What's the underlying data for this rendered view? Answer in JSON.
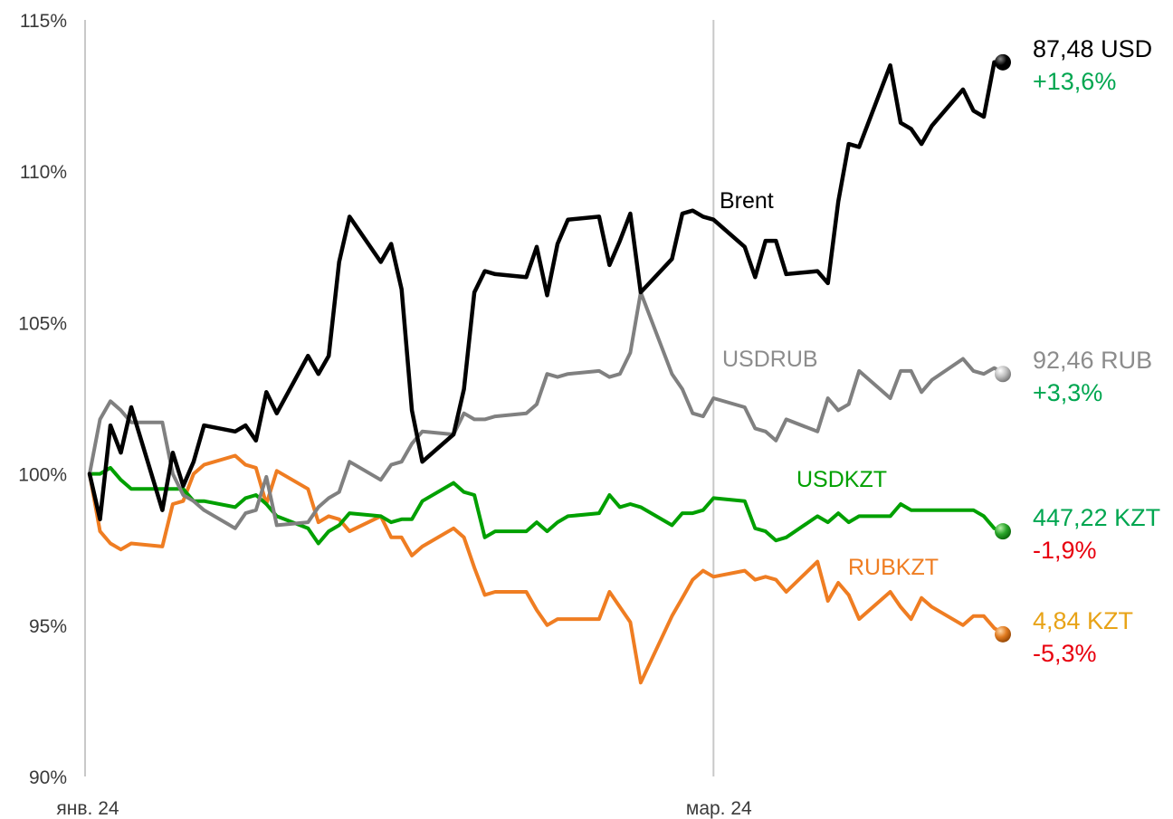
{
  "chart_data": {
    "type": "line",
    "title": "",
    "xlabel": "",
    "ylabel": "",
    "ylim": [
      90,
      115
    ],
    "y_ticks": [
      {
        "value": 90,
        "label": "90%"
      },
      {
        "value": 95,
        "label": "95%"
      },
      {
        "value": 100,
        "label": "100%"
      },
      {
        "value": 105,
        "label": "105%"
      },
      {
        "value": 110,
        "label": "110%"
      },
      {
        "value": 115,
        "label": "115%"
      }
    ],
    "x_ticks": [
      {
        "date": "2024-01-01",
        "label": "янв. 24"
      },
      {
        "date": "2024-03-01",
        "label": "мар. 24"
      }
    ],
    "xlim": [
      "2024-01-01",
      "2024-04-01"
    ],
    "grid": "vertical",
    "series": [
      {
        "name": "Brent",
        "color": "#000000",
        "label_color": "#000000",
        "end_value": "87,48 USD",
        "end_change": "+13,6%",
        "end_change_color": "#00a650",
        "points": [
          [
            "2024-01-01",
            100.0
          ],
          [
            "2024-01-02",
            98.5
          ],
          [
            "2024-01-03",
            101.6
          ],
          [
            "2024-01-04",
            100.7
          ],
          [
            "2024-01-05",
            102.2
          ],
          [
            "2024-01-08",
            98.8
          ],
          [
            "2024-01-09",
            100.7
          ],
          [
            "2024-01-10",
            99.6
          ],
          [
            "2024-01-11",
            100.4
          ],
          [
            "2024-01-12",
            101.6
          ],
          [
            "2024-01-15",
            101.4
          ],
          [
            "2024-01-16",
            101.6
          ],
          [
            "2024-01-17",
            101.1
          ],
          [
            "2024-01-18",
            102.7
          ],
          [
            "2024-01-19",
            102.0
          ],
          [
            "2024-01-22",
            103.9
          ],
          [
            "2024-01-23",
            103.3
          ],
          [
            "2024-01-24",
            103.9
          ],
          [
            "2024-01-25",
            107.0
          ],
          [
            "2024-01-26",
            108.5
          ],
          [
            "2024-01-29",
            107.0
          ],
          [
            "2024-01-30",
            107.6
          ],
          [
            "2024-01-31",
            106.1
          ],
          [
            "2024-02-01",
            102.1
          ],
          [
            "2024-02-02",
            100.4
          ],
          [
            "2024-02-05",
            101.3
          ],
          [
            "2024-02-06",
            102.8
          ],
          [
            "2024-02-07",
            106.0
          ],
          [
            "2024-02-08",
            106.7
          ],
          [
            "2024-02-09",
            106.6
          ],
          [
            "2024-02-12",
            106.5
          ],
          [
            "2024-02-13",
            107.5
          ],
          [
            "2024-02-14",
            105.9
          ],
          [
            "2024-02-15",
            107.6
          ],
          [
            "2024-02-16",
            108.4
          ],
          [
            "2024-02-19",
            108.5
          ],
          [
            "2024-02-20",
            106.9
          ],
          [
            "2024-02-21",
            107.7
          ],
          [
            "2024-02-22",
            108.6
          ],
          [
            "2024-02-23",
            106.0
          ],
          [
            "2024-02-26",
            107.1
          ],
          [
            "2024-02-27",
            108.6
          ],
          [
            "2024-02-28",
            108.7
          ],
          [
            "2024-02-29",
            108.5
          ],
          [
            "2024-03-01",
            108.4
          ],
          [
            "2024-03-04",
            107.5
          ],
          [
            "2024-03-05",
            106.5
          ],
          [
            "2024-03-06",
            107.7
          ],
          [
            "2024-03-07",
            107.7
          ],
          [
            "2024-03-08",
            106.6
          ],
          [
            "2024-03-11",
            106.7
          ],
          [
            "2024-03-12",
            106.3
          ],
          [
            "2024-03-13",
            109.0
          ],
          [
            "2024-03-14",
            110.9
          ],
          [
            "2024-03-15",
            110.8
          ],
          [
            "2024-03-18",
            113.5
          ],
          [
            "2024-03-19",
            111.6
          ],
          [
            "2024-03-20",
            111.4
          ],
          [
            "2024-03-21",
            110.9
          ],
          [
            "2024-03-22",
            111.5
          ],
          [
            "2024-03-25",
            112.7
          ],
          [
            "2024-03-26",
            112.0
          ],
          [
            "2024-03-27",
            111.8
          ],
          [
            "2024-03-28",
            113.6
          ],
          [
            "2024-03-29",
            113.6
          ]
        ]
      },
      {
        "name": "USDRUB",
        "color": "#808080",
        "label_color": "#8c8c8c",
        "end_value": "92,46 RUB",
        "end_change": "+3,3%",
        "end_change_color": "#00a650",
        "points": [
          [
            "2024-01-01",
            100.0
          ],
          [
            "2024-01-02",
            101.8
          ],
          [
            "2024-01-03",
            102.4
          ],
          [
            "2024-01-04",
            102.1
          ],
          [
            "2024-01-05",
            101.7
          ],
          [
            "2024-01-08",
            101.7
          ],
          [
            "2024-01-09",
            100.0
          ],
          [
            "2024-01-10",
            99.3
          ],
          [
            "2024-01-11",
            99.1
          ],
          [
            "2024-01-12",
            98.8
          ],
          [
            "2024-01-15",
            98.2
          ],
          [
            "2024-01-16",
            98.7
          ],
          [
            "2024-01-17",
            98.8
          ],
          [
            "2024-01-18",
            99.9
          ],
          [
            "2024-01-19",
            98.3
          ],
          [
            "2024-01-22",
            98.4
          ],
          [
            "2024-01-23",
            98.9
          ],
          [
            "2024-01-24",
            99.2
          ],
          [
            "2024-01-25",
            99.4
          ],
          [
            "2024-01-26",
            100.4
          ],
          [
            "2024-01-29",
            99.8
          ],
          [
            "2024-01-30",
            100.3
          ],
          [
            "2024-01-31",
            100.4
          ],
          [
            "2024-02-01",
            101.0
          ],
          [
            "2024-02-02",
            101.4
          ],
          [
            "2024-02-05",
            101.3
          ],
          [
            "2024-02-06",
            102.0
          ],
          [
            "2024-02-07",
            101.8
          ],
          [
            "2024-02-08",
            101.8
          ],
          [
            "2024-02-09",
            101.9
          ],
          [
            "2024-02-12",
            102.0
          ],
          [
            "2024-02-13",
            102.3
          ],
          [
            "2024-02-14",
            103.3
          ],
          [
            "2024-02-15",
            103.2
          ],
          [
            "2024-02-16",
            103.3
          ],
          [
            "2024-02-19",
            103.4
          ],
          [
            "2024-02-20",
            103.2
          ],
          [
            "2024-02-21",
            103.3
          ],
          [
            "2024-02-22",
            104.0
          ],
          [
            "2024-02-23",
            106.0
          ],
          [
            "2024-02-26",
            103.3
          ],
          [
            "2024-02-27",
            102.8
          ],
          [
            "2024-02-28",
            102.0
          ],
          [
            "2024-02-29",
            101.9
          ],
          [
            "2024-03-01",
            102.5
          ],
          [
            "2024-03-04",
            102.2
          ],
          [
            "2024-03-05",
            101.5
          ],
          [
            "2024-03-06",
            101.4
          ],
          [
            "2024-03-07",
            101.1
          ],
          [
            "2024-03-08",
            101.8
          ],
          [
            "2024-03-11",
            101.4
          ],
          [
            "2024-03-12",
            102.5
          ],
          [
            "2024-03-13",
            102.1
          ],
          [
            "2024-03-14",
            102.3
          ],
          [
            "2024-03-15",
            103.4
          ],
          [
            "2024-03-18",
            102.5
          ],
          [
            "2024-03-19",
            103.4
          ],
          [
            "2024-03-20",
            103.4
          ],
          [
            "2024-03-21",
            102.7
          ],
          [
            "2024-03-22",
            103.1
          ],
          [
            "2024-03-25",
            103.8
          ],
          [
            "2024-03-26",
            103.4
          ],
          [
            "2024-03-27",
            103.3
          ],
          [
            "2024-03-28",
            103.5
          ],
          [
            "2024-03-29",
            103.3
          ]
        ]
      },
      {
        "name": "USDKZT",
        "color": "#00a000",
        "label_color": "#00a000",
        "end_value": "447,22 KZT",
        "end_change": "-1,9%",
        "end_change_color": "#e8000e",
        "points": [
          [
            "2024-01-01",
            100.0
          ],
          [
            "2024-01-02",
            100.0
          ],
          [
            "2024-01-03",
            100.2
          ],
          [
            "2024-01-04",
            99.8
          ],
          [
            "2024-01-05",
            99.5
          ],
          [
            "2024-01-08",
            99.5
          ],
          [
            "2024-01-09",
            99.5
          ],
          [
            "2024-01-10",
            99.5
          ],
          [
            "2024-01-11",
            99.1
          ],
          [
            "2024-01-12",
            99.1
          ],
          [
            "2024-01-15",
            98.9
          ],
          [
            "2024-01-16",
            99.2
          ],
          [
            "2024-01-17",
            99.3
          ],
          [
            "2024-01-18",
            99.0
          ],
          [
            "2024-01-19",
            98.6
          ],
          [
            "2024-01-22",
            98.2
          ],
          [
            "2024-01-23",
            97.7
          ],
          [
            "2024-01-24",
            98.1
          ],
          [
            "2024-01-25",
            98.3
          ],
          [
            "2024-01-26",
            98.7
          ],
          [
            "2024-01-29",
            98.6
          ],
          [
            "2024-01-30",
            98.4
          ],
          [
            "2024-01-31",
            98.5
          ],
          [
            "2024-02-01",
            98.5
          ],
          [
            "2024-02-02",
            99.1
          ],
          [
            "2024-02-05",
            99.7
          ],
          [
            "2024-02-06",
            99.4
          ],
          [
            "2024-02-07",
            99.3
          ],
          [
            "2024-02-08",
            97.9
          ],
          [
            "2024-02-09",
            98.1
          ],
          [
            "2024-02-12",
            98.1
          ],
          [
            "2024-02-13",
            98.4
          ],
          [
            "2024-02-14",
            98.1
          ],
          [
            "2024-02-15",
            98.4
          ],
          [
            "2024-02-16",
            98.6
          ],
          [
            "2024-02-19",
            98.7
          ],
          [
            "2024-02-20",
            99.3
          ],
          [
            "2024-02-21",
            98.9
          ],
          [
            "2024-02-22",
            99.0
          ],
          [
            "2024-02-23",
            98.9
          ],
          [
            "2024-02-26",
            98.3
          ],
          [
            "2024-02-27",
            98.7
          ],
          [
            "2024-02-28",
            98.7
          ],
          [
            "2024-02-29",
            98.8
          ],
          [
            "2024-03-01",
            99.2
          ],
          [
            "2024-03-04",
            99.1
          ],
          [
            "2024-03-05",
            98.2
          ],
          [
            "2024-03-06",
            98.1
          ],
          [
            "2024-03-07",
            97.8
          ],
          [
            "2024-03-08",
            97.9
          ],
          [
            "2024-03-11",
            98.6
          ],
          [
            "2024-03-12",
            98.4
          ],
          [
            "2024-03-13",
            98.7
          ],
          [
            "2024-03-14",
            98.4
          ],
          [
            "2024-03-15",
            98.6
          ],
          [
            "2024-03-18",
            98.6
          ],
          [
            "2024-03-19",
            99.0
          ],
          [
            "2024-03-20",
            98.8
          ],
          [
            "2024-03-21",
            98.8
          ],
          [
            "2024-03-22",
            98.8
          ],
          [
            "2024-03-25",
            98.8
          ],
          [
            "2024-03-26",
            98.8
          ],
          [
            "2024-03-27",
            98.6
          ],
          [
            "2024-03-28",
            98.2
          ],
          [
            "2024-03-29",
            98.1
          ]
        ]
      },
      {
        "name": "RUBKZT",
        "color": "#ef7d22",
        "label_color": "#ef7d22",
        "end_value": "4,84 KZT",
        "end_change": "-5,3%",
        "end_change_color": "#e8000e",
        "points": [
          [
            "2024-01-01",
            100.0
          ],
          [
            "2024-01-02",
            98.1
          ],
          [
            "2024-01-03",
            97.7
          ],
          [
            "2024-01-04",
            97.5
          ],
          [
            "2024-01-05",
            97.7
          ],
          [
            "2024-01-08",
            97.6
          ],
          [
            "2024-01-09",
            99.0
          ],
          [
            "2024-01-10",
            99.1
          ],
          [
            "2024-01-11",
            100.0
          ],
          [
            "2024-01-12",
            100.3
          ],
          [
            "2024-01-15",
            100.6
          ],
          [
            "2024-01-16",
            100.3
          ],
          [
            "2024-01-17",
            100.2
          ],
          [
            "2024-01-18",
            99.0
          ],
          [
            "2024-01-19",
            100.1
          ],
          [
            "2024-01-22",
            99.5
          ],
          [
            "2024-01-23",
            98.4
          ],
          [
            "2024-01-24",
            98.6
          ],
          [
            "2024-01-25",
            98.5
          ],
          [
            "2024-01-26",
            98.1
          ],
          [
            "2024-01-29",
            98.6
          ],
          [
            "2024-01-30",
            97.9
          ],
          [
            "2024-01-31",
            97.9
          ],
          [
            "2024-02-01",
            97.3
          ],
          [
            "2024-02-02",
            97.6
          ],
          [
            "2024-02-05",
            98.2
          ],
          [
            "2024-02-06",
            97.9
          ],
          [
            "2024-02-07",
            96.9
          ],
          [
            "2024-02-08",
            96.0
          ],
          [
            "2024-02-09",
            96.1
          ],
          [
            "2024-02-12",
            96.1
          ],
          [
            "2024-02-13",
            95.5
          ],
          [
            "2024-02-14",
            95.0
          ],
          [
            "2024-02-15",
            95.2
          ],
          [
            "2024-02-16",
            95.2
          ],
          [
            "2024-02-19",
            95.2
          ],
          [
            "2024-02-20",
            96.1
          ],
          [
            "2024-02-21",
            95.6
          ],
          [
            "2024-02-22",
            95.1
          ],
          [
            "2024-02-23",
            93.1
          ],
          [
            "2024-02-26",
            95.3
          ],
          [
            "2024-02-27",
            95.9
          ],
          [
            "2024-02-28",
            96.5
          ],
          [
            "2024-02-29",
            96.8
          ],
          [
            "2024-03-01",
            96.6
          ],
          [
            "2024-03-04",
            96.8
          ],
          [
            "2024-03-05",
            96.5
          ],
          [
            "2024-03-06",
            96.6
          ],
          [
            "2024-03-07",
            96.5
          ],
          [
            "2024-03-08",
            96.1
          ],
          [
            "2024-03-11",
            97.1
          ],
          [
            "2024-03-12",
            95.8
          ],
          [
            "2024-03-13",
            96.4
          ],
          [
            "2024-03-14",
            96.0
          ],
          [
            "2024-03-15",
            95.2
          ],
          [
            "2024-03-18",
            96.1
          ],
          [
            "2024-03-19",
            95.6
          ],
          [
            "2024-03-20",
            95.2
          ],
          [
            "2024-03-21",
            95.9
          ],
          [
            "2024-03-22",
            95.6
          ],
          [
            "2024-03-25",
            95.0
          ],
          [
            "2024-03-26",
            95.3
          ],
          [
            "2024-03-27",
            95.3
          ],
          [
            "2024-03-28",
            94.9
          ],
          [
            "2024-03-29",
            94.7
          ]
        ]
      }
    ]
  }
}
